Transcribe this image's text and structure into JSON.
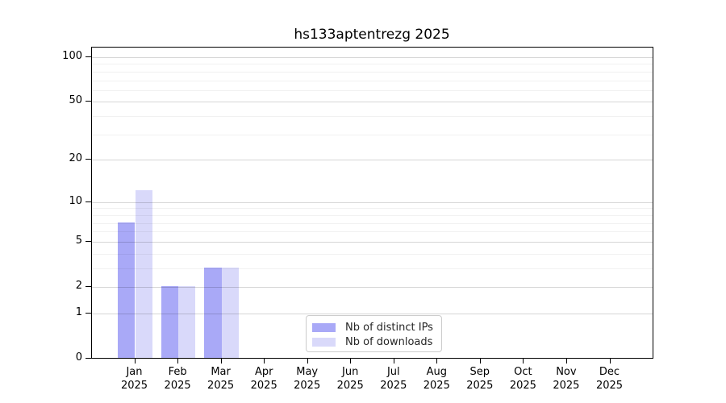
{
  "title": "hs133aptentrezg 2025",
  "chart_data": {
    "type": "bar",
    "title": "hs133aptentrezg 2025",
    "categories": [
      "Jan 2025",
      "Feb 2025",
      "Mar 2025",
      "Apr 2025",
      "May 2025",
      "Jun 2025",
      "Jul 2025",
      "Aug 2025",
      "Sep 2025",
      "Oct 2025",
      "Nov 2025",
      "Dec 2025"
    ],
    "x_tick_month": [
      "Jan",
      "Feb",
      "Mar",
      "Apr",
      "May",
      "Jun",
      "Jul",
      "Aug",
      "Sep",
      "Oct",
      "Nov",
      "Dec"
    ],
    "x_tick_year": "2025",
    "series": [
      {
        "name": "Nb of distinct IPs",
        "color": "#a9a9f7",
        "values": [
          7,
          2,
          3,
          0,
          0,
          0,
          0,
          0,
          0,
          0,
          0,
          0
        ]
      },
      {
        "name": "Nb of downloads",
        "color": "#d9d9fa",
        "values": [
          12,
          2,
          3,
          0,
          0,
          0,
          0,
          0,
          0,
          0,
          0,
          0
        ]
      }
    ],
    "xlabel": "",
    "ylabel": "",
    "yscale": "log1p",
    "y_ticks": [
      0,
      1,
      2,
      5,
      10,
      20,
      50,
      100
    ],
    "y_minor_gridlines": [
      3,
      4,
      6,
      7,
      8,
      9,
      30,
      40,
      60,
      70,
      80,
      90
    ],
    "ylim": [
      0,
      116
    ],
    "grid": true,
    "legend_position": "lower center"
  },
  "colors": {
    "background": "#ffffff",
    "axis": "#000000",
    "grid_major": "#cccccc",
    "grid_minor": "#ebebeb",
    "bar_distinct_ips": "#a9a9f7",
    "bar_downloads": "#d9d9fa",
    "legend_border": "#cccccc"
  }
}
